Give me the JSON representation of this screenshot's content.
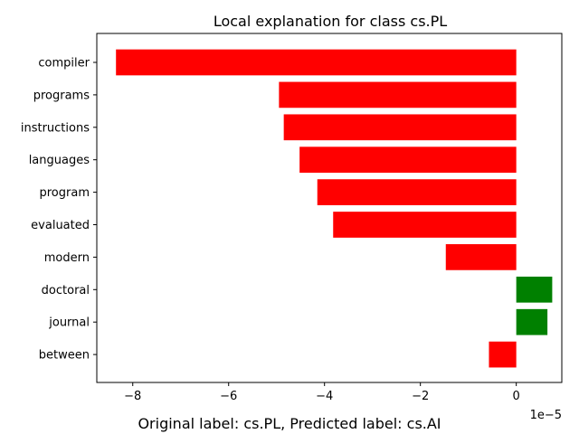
{
  "chart_data": {
    "type": "bar",
    "orientation": "horizontal",
    "title": "Local explanation for class cs.PL",
    "xlabel": "Original label: cs.PL, Predicted label: cs.AI",
    "x_scale_label": "1e−5",
    "x_scale": 1e-05,
    "categories": [
      "compiler",
      "programs",
      "instructions",
      "languages",
      "program",
      "evaluated",
      "modern",
      "doctoral",
      "journal",
      "between"
    ],
    "values": [
      -8.35,
      -4.95,
      -4.85,
      -4.52,
      -4.15,
      -3.82,
      -1.47,
      0.75,
      0.65,
      -0.57
    ],
    "xlim": [
      -8.75,
      0.95
    ],
    "xticks": [
      -8,
      -6,
      -4,
      -2,
      0
    ],
    "xtick_labels": [
      "−8",
      "−6",
      "−4",
      "−2",
      "0"
    ],
    "colors": {
      "positive": "#008000",
      "negative": "#ff0000"
    },
    "grid": false,
    "legend": "none"
  }
}
